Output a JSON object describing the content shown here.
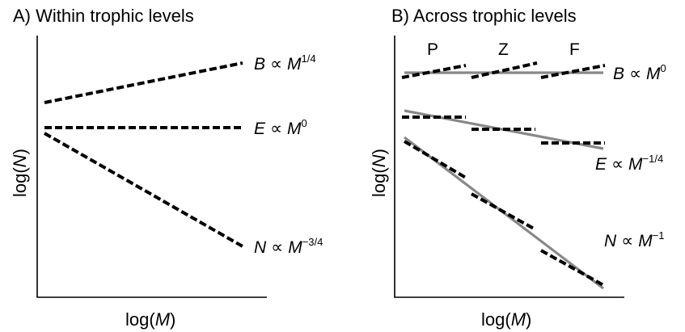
{
  "panelA": {
    "title": "A) Within trophic levels",
    "xlabel": "log(M)",
    "ylabel": "log(N)",
    "relations": [
      {
        "lhs": "B",
        "base": "M",
        "exp": "1/4"
      },
      {
        "lhs": "E",
        "base": "M",
        "exp": "0"
      },
      {
        "lhs": "N",
        "base": "M",
        "exp": "−3/4"
      }
    ]
  },
  "panelB": {
    "title": "B) Across trophic levels",
    "xlabel": "log(M)",
    "ylabel": "log(N)",
    "levels": [
      "P",
      "Z",
      "F"
    ],
    "relations": [
      {
        "lhs": "B",
        "base": "M",
        "exp": "0"
      },
      {
        "lhs": "E",
        "base": "M",
        "exp": "−1/4"
      },
      {
        "lhs": "N",
        "base": "M",
        "exp": "−1"
      }
    ]
  },
  "symbols": {
    "prop": "∝"
  }
}
